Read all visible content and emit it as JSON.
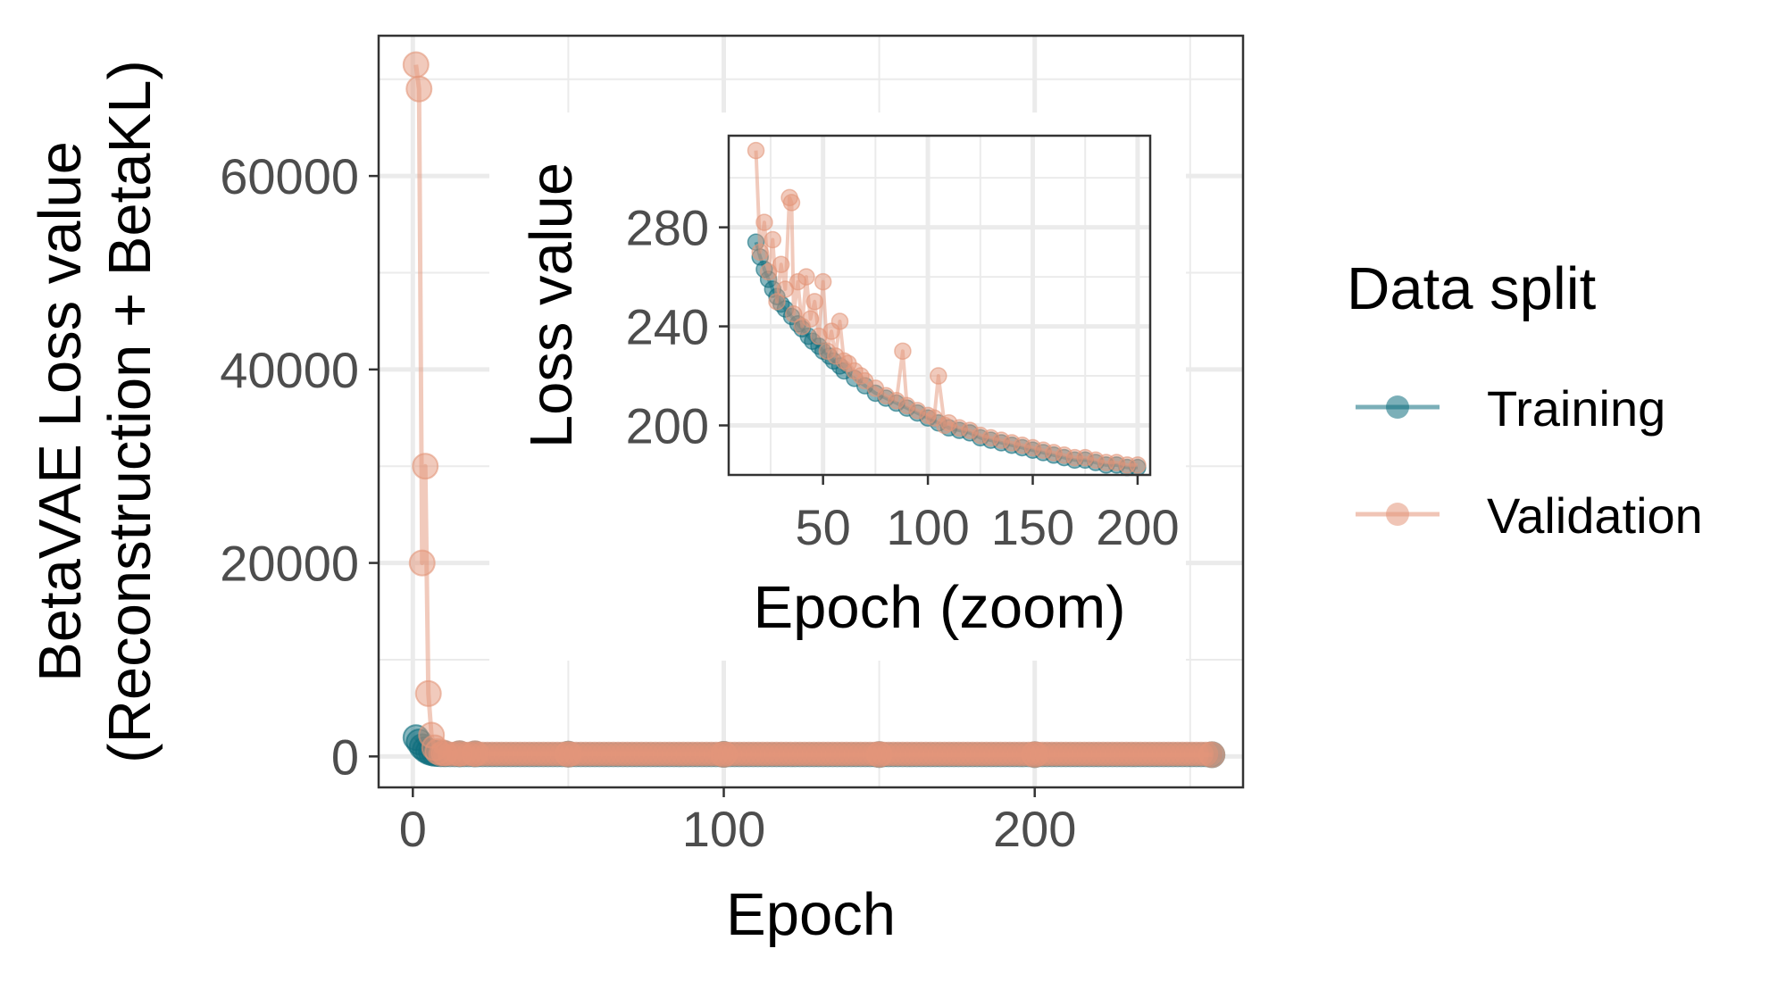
{
  "legend": {
    "title": "Data split",
    "items": [
      {
        "label": "Training",
        "color": "#0F6E7D"
      },
      {
        "label": "Validation",
        "color": "#E3967A"
      }
    ]
  },
  "chart_data": [
    {
      "type": "line",
      "title": "",
      "xlabel": "Epoch",
      "ylabel_lines": [
        "BetaVAE Loss value",
        "(Reconstruction + BetaKL)"
      ],
      "xlim": [
        -11,
        267
      ],
      "ylim": [
        -3200,
        74500
      ],
      "x_ticks": [
        0,
        100,
        200
      ],
      "y_ticks": [
        0,
        20000,
        40000,
        60000
      ],
      "y_tick_labels": [
        "0",
        "20000",
        "40000",
        "60000"
      ],
      "grid": true,
      "series": [
        {
          "name": "Training",
          "color": "#0F6E7D",
          "x": [
            1,
            2,
            3,
            4,
            5,
            6,
            7,
            8,
            10,
            15,
            20,
            50,
            100,
            150,
            200,
            257
          ],
          "y": [
            1950,
            1500,
            1000,
            700,
            500,
            380,
            320,
            300,
            290,
            275,
            265,
            235,
            210,
            195,
            185,
            175
          ]
        },
        {
          "name": "Validation",
          "color": "#E3967A",
          "x": [
            1,
            2,
            3,
            4,
            5,
            6,
            7,
            8,
            10,
            15,
            20,
            50,
            100,
            150,
            200,
            257
          ],
          "y": [
            71500,
            69000,
            20000,
            30000,
            6500,
            2200,
            900,
            500,
            350,
            300,
            280,
            240,
            215,
            200,
            190,
            180
          ]
        }
      ]
    },
    {
      "type": "line",
      "title": "",
      "xlabel": "Epoch (zoom)",
      "ylabel": "Loss value",
      "xlim": [
        5,
        206
      ],
      "ylim": [
        180,
        317
      ],
      "x_ticks": [
        50,
        100,
        150,
        200
      ],
      "y_ticks": [
        200,
        240,
        280
      ],
      "grid": true,
      "series": [
        {
          "name": "Training",
          "color": "#0F6E7D",
          "x": [
            18,
            20,
            22,
            24,
            26,
            28,
            30,
            32,
            35,
            38,
            40,
            43,
            45,
            48,
            50,
            53,
            55,
            58,
            60,
            65,
            70,
            75,
            80,
            85,
            90,
            95,
            100,
            105,
            110,
            115,
            120,
            125,
            130,
            135,
            140,
            145,
            150,
            155,
            160,
            165,
            170,
            175,
            180,
            185,
            190,
            195,
            200
          ],
          "y": [
            274,
            268,
            263,
            259,
            255,
            252,
            249,
            247,
            244,
            241,
            239,
            236,
            234,
            232,
            230,
            228,
            226,
            224,
            222,
            219,
            216,
            213,
            211,
            209,
            207,
            205,
            203,
            201,
            199,
            198,
            197,
            195,
            194,
            193,
            192,
            191,
            190,
            189,
            188,
            187,
            186,
            186,
            185,
            184,
            184,
            183,
            183
          ]
        },
        {
          "name": "Validation",
          "color": "#E3967A",
          "x": [
            18,
            20,
            22,
            24,
            26,
            28,
            30,
            32,
            34,
            35,
            36,
            38,
            40,
            42,
            44,
            46,
            48,
            50,
            52,
            54,
            56,
            58,
            60,
            62,
            65,
            68,
            70,
            75,
            80,
            85,
            88,
            90,
            95,
            100,
            103,
            105,
            108,
            110,
            115,
            120,
            125,
            130,
            135,
            140,
            145,
            150,
            155,
            160,
            165,
            170,
            175,
            180,
            185,
            190,
            195,
            200
          ],
          "y": [
            311,
            270,
            282,
            262,
            275,
            250,
            265,
            255,
            292,
            290,
            245,
            258,
            240,
            260,
            243,
            250,
            236,
            258,
            230,
            238,
            228,
            242,
            226,
            225,
            222,
            220,
            218,
            215,
            212,
            210,
            230,
            208,
            206,
            204,
            203,
            220,
            200,
            201,
            199,
            198,
            196,
            195,
            194,
            193,
            192,
            191,
            190,
            189,
            188,
            187,
            187,
            186,
            185,
            185,
            184,
            184
          ]
        }
      ]
    }
  ]
}
